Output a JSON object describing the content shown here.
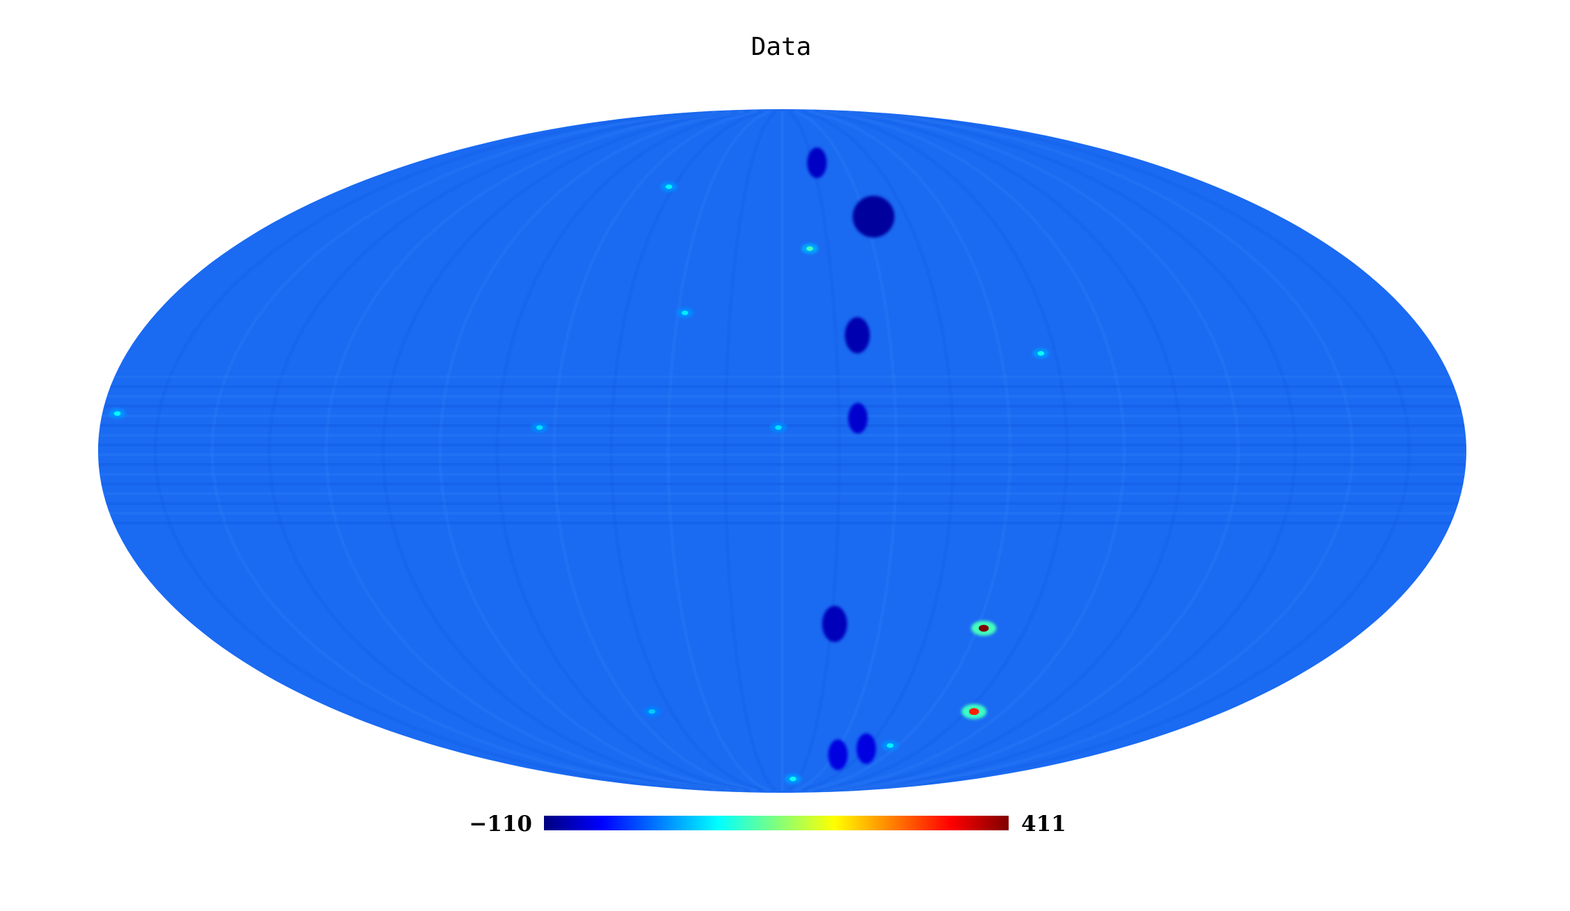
{
  "chart_data": {
    "type": "heatmap",
    "projection": "mollweide",
    "title": "Data",
    "colorbar": {
      "min": -110,
      "max": 411,
      "min_label": "−110",
      "max_label": "411",
      "colormap": [
        "#00007f",
        "#0000ff",
        "#007fff",
        "#00ffff",
        "#7fff7f",
        "#ffff00",
        "#ff7f00",
        "#ff0000",
        "#7f0000"
      ]
    },
    "background_value": 0,
    "background_color": "#1a6af2",
    "features": [
      {
        "lon": -33,
        "lat": 53,
        "value": -95,
        "kind": "cold-spot"
      },
      {
        "lon": -21,
        "lat": 25,
        "value": -85,
        "kind": "cold-spot"
      },
      {
        "lon": -20,
        "lat": 7,
        "value": -70,
        "kind": "cold-spot"
      },
      {
        "lon": -16,
        "lat": -38,
        "value": -80,
        "kind": "cold-spot"
      },
      {
        "lon": -17,
        "lat": 68,
        "value": -75,
        "kind": "cold-spot"
      },
      {
        "lon": -9,
        "lat": 45,
        "value": 120,
        "kind": "hot-spot"
      },
      {
        "lon": -62,
        "lat": -39,
        "value": 411,
        "kind": "hot-spot"
      },
      {
        "lon": -78,
        "lat": -60,
        "value": 330,
        "kind": "hot-spot"
      },
      {
        "lon": -71,
        "lat": 21,
        "value": 90,
        "kind": "hot-spot"
      },
      {
        "lon": 47,
        "lat": 61,
        "value": 80,
        "kind": "hot-spot"
      },
      {
        "lon": 28,
        "lat": 30,
        "value": 75,
        "kind": "hot-spot"
      },
      {
        "lon": 1,
        "lat": 5,
        "value": 70,
        "kind": "hot-spot"
      },
      {
        "lon": 176,
        "lat": 8,
        "value": 85,
        "kind": "hot-spot"
      },
      {
        "lon": 64,
        "lat": 5,
        "value": 70,
        "kind": "hot-spot"
      },
      {
        "lon": -10,
        "lat": -82,
        "value": 90,
        "kind": "hot-spot"
      },
      {
        "lon": 53,
        "lat": -60,
        "value": 60,
        "kind": "hot-spot"
      },
      {
        "lon": -32,
        "lat": -73,
        "value": -60,
        "kind": "cold-spot"
      },
      {
        "lon": -45,
        "lat": -71,
        "value": -60,
        "kind": "cold-spot"
      },
      {
        "lon": -56,
        "lat": -70,
        "value": 80,
        "kind": "hot-spot"
      }
    ]
  }
}
